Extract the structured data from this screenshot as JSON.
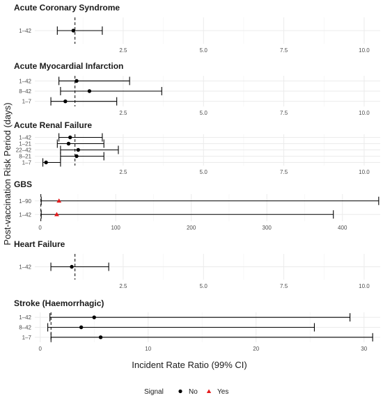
{
  "chart_data": {
    "type": "forest",
    "ylabel": "Post-vaccination Risk Period (days)",
    "xlabel": "Incident Rate Ratio (99% CI)",
    "legend": {
      "title": "Signal",
      "entries": [
        {
          "label": "No",
          "shape": "circle",
          "color": "#000000"
        },
        {
          "label": "Yes",
          "shape": "triangle",
          "color": "#e41a1c"
        }
      ],
      "position": "bottom"
    },
    "reference_line": 1,
    "panels": [
      {
        "title": "Acute Coronary Syndrome",
        "xlim": [
          -0.25,
          10.5
        ],
        "xticks": [
          2.5,
          5.0,
          7.5,
          10.0
        ],
        "xtick_labels": [
          "2.5",
          "5.0",
          "7.5",
          "10.0"
        ],
        "rows": [
          {
            "period": "1–42",
            "estimate": 0.95,
            "lower": 0.45,
            "upper": 1.85,
            "signal": "No"
          }
        ]
      },
      {
        "title": "Acute Myocardial Infarction",
        "xlim": [
          -0.25,
          10.5
        ],
        "xticks": [
          2.5,
          5.0,
          7.5,
          10.0
        ],
        "xtick_labels": [
          "2.5",
          "5.0",
          "7.5",
          "10.0"
        ],
        "rows": [
          {
            "period": "1–42",
            "estimate": 1.05,
            "lower": 0.5,
            "upper": 2.7,
            "signal": "No"
          },
          {
            "period": "8–42",
            "estimate": 1.45,
            "lower": 0.55,
            "upper": 3.7,
            "signal": "No"
          },
          {
            "period": "1–7",
            "estimate": 0.7,
            "lower": 0.25,
            "upper": 2.3,
            "signal": "No"
          }
        ]
      },
      {
        "title": "Acute Renal Failure",
        "xlim": [
          -0.25,
          10.5
        ],
        "xticks": [
          2.5,
          5.0,
          7.5,
          10.0
        ],
        "xtick_labels": [
          "2.5",
          "5.0",
          "7.5",
          "10.0"
        ],
        "rows": [
          {
            "period": "1–42",
            "estimate": 0.85,
            "lower": 0.5,
            "upper": 1.85,
            "signal": "No"
          },
          {
            "period": "1–21",
            "estimate": 0.8,
            "lower": 0.45,
            "upper": 1.9,
            "signal": "No"
          },
          {
            "period": "22–42",
            "estimate": 1.1,
            "lower": 0.55,
            "upper": 2.35,
            "signal": "No"
          },
          {
            "period": "8–21",
            "estimate": 1.05,
            "lower": 0.55,
            "upper": 1.9,
            "signal": "No"
          },
          {
            "period": "1–7",
            "estimate": 0.1,
            "lower": 0.0,
            "upper": 0.55,
            "signal": "No"
          }
        ]
      },
      {
        "title": "GBS",
        "xlim": [
          -7,
          450
        ],
        "xticks": [
          0,
          100,
          200,
          300,
          400
        ],
        "xtick_labels": [
          "0",
          "100",
          "200",
          "300",
          "400"
        ],
        "rows": [
          {
            "period": "1–90",
            "estimate": 25,
            "lower": 1.5,
            "upper": 448,
            "signal": "Yes"
          },
          {
            "period": "1–42",
            "estimate": 22,
            "lower": 1.5,
            "upper": 388,
            "signal": "Yes"
          }
        ]
      },
      {
        "title": "Heart Failure",
        "xlim": [
          -0.25,
          10.5
        ],
        "xticks": [
          2.5,
          5.0,
          7.5,
          10.0
        ],
        "xtick_labels": [
          "2.5",
          "5.0",
          "7.5",
          "10.0"
        ],
        "rows": [
          {
            "period": "1–42",
            "estimate": 0.9,
            "lower": 0.25,
            "upper": 2.05,
            "signal": "No"
          }
        ]
      },
      {
        "title": "Stroke (Haemorrhagic)",
        "xlim": [
          -0.5,
          31.5
        ],
        "xticks": [
          0,
          10,
          20,
          30
        ],
        "xtick_labels": [
          "0",
          "10",
          "20",
          "30"
        ],
        "rows": [
          {
            "period": "1–42",
            "estimate": 5.0,
            "lower": 0.9,
            "upper": 28.7,
            "signal": "No"
          },
          {
            "period": "8–42",
            "estimate": 3.8,
            "lower": 0.7,
            "upper": 25.4,
            "signal": "No"
          },
          {
            "period": "1–7",
            "estimate": 5.6,
            "lower": 1.0,
            "upper": 30.8,
            "signal": "No"
          }
        ]
      }
    ],
    "grid": true
  }
}
